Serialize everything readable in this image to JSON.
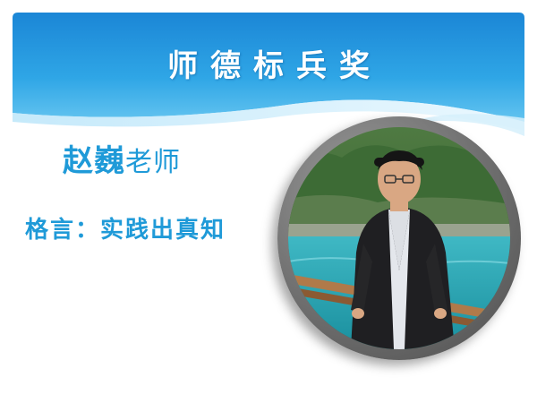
{
  "slide": {
    "title": "师德标兵奖",
    "teacher_name": "赵巍",
    "teacher_suffix": "老师",
    "motto_label": "格言：",
    "motto": "实践出真知"
  },
  "colors": {
    "header_blue": "#1e8fd8",
    "header_light": "#6cc6f2",
    "text_blue": "#1f9ad8",
    "title_text": "#ffffff",
    "frame_gray": "#6e6e6e"
  },
  "photo": {
    "description_icon": "teacher-portrait-image"
  }
}
